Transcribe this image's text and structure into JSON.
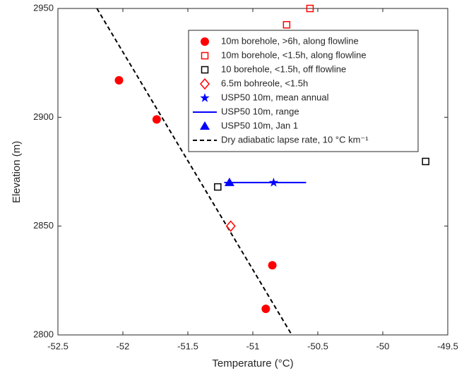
{
  "chart_data": {
    "type": "scatter",
    "x_label": "Temperature (°C)",
    "y_label": "Elevation (m)",
    "xlim": [
      -52.5,
      -49.5
    ],
    "ylim": [
      2800,
      2950
    ],
    "xticks": [
      -52.5,
      -52,
      -51.5,
      -51,
      -50.5,
      -50,
      -49.5
    ],
    "yticks": [
      2800,
      2850,
      2900,
      2950
    ],
    "grid": false,
    "legend": "northeast",
    "series": [
      {
        "name": "10m borehole, >6h, along flowline",
        "color": "#ff0000",
        "marker": "circle",
        "x": [
          -52.03,
          -51.74,
          -50.85,
          -50.9
        ],
        "values": [
          2917,
          2899,
          2832,
          2812
        ]
      },
      {
        "name": "10m borehole, <1.5h, along flowline",
        "color": "#ff0000",
        "marker": "square",
        "x": [
          -50.56,
          -50.74
        ],
        "values": [
          2950,
          2942.5
        ]
      },
      {
        "name": "10 borehole, <1.5h, off flowline",
        "color": "#000000",
        "marker": "square",
        "x": [
          -49.67,
          -51.27
        ],
        "values": [
          2879.7,
          2868
        ]
      },
      {
        "name": "6.5m bohreole, <1.5h",
        "color": "#ff0000",
        "marker": "diamond",
        "x": [
          -51.17
        ],
        "values": [
          2850
        ]
      },
      {
        "name": "USP50 10m, mean annual",
        "color": "#0000ff",
        "marker": "star",
        "x": [
          -50.84
        ],
        "values": [
          2870
        ]
      },
      {
        "name": "USP50 10m, range",
        "color": "#0000ff",
        "marker": "line",
        "x": [
          -51.22,
          -50.59
        ],
        "values": [
          2870,
          2870
        ]
      },
      {
        "name": "USP50 10m, Jan 1",
        "color": "#0000ff",
        "marker": "triangle",
        "x": [
          -51.18
        ],
        "values": [
          2870
        ]
      },
      {
        "name": "Dry adiabatic lapse rate, 10 °C km⁻¹",
        "color": "#000000",
        "marker": "dashed",
        "x": [
          -52.2,
          -50.7
        ],
        "values": [
          2950,
          2800
        ]
      }
    ]
  }
}
